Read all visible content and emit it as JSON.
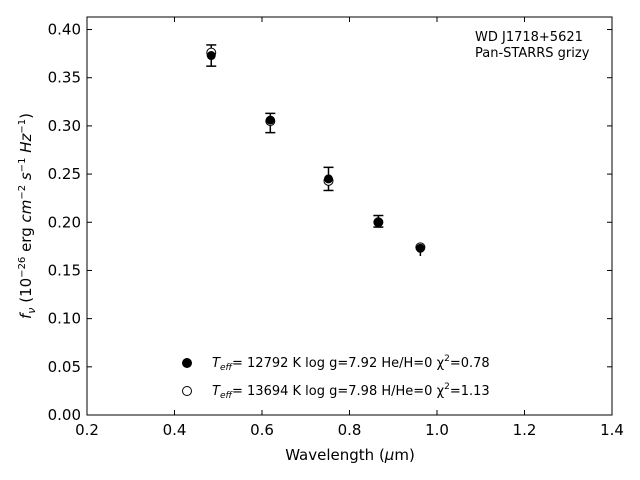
{
  "chart_data": {
    "type": "scatter",
    "title": "",
    "xlabel": "Wavelength (",
    "xlabel_greek": "μ",
    "xlabel_unit": "m)",
    "ylabel": {
      "sym": "f",
      "sub": "ν",
      "p1": " (10",
      "e1": "−26",
      "p2": " erg ",
      "cm": "cm",
      "e2": "−2",
      "s": " s",
      "e3": "−1",
      "hz": " Hz",
      "e4": "−1",
      "close": ")"
    },
    "xlim": [
      0.2,
      1.4
    ],
    "ylim": [
      0.0,
      0.413
    ],
    "xticks": [
      0.2,
      0.4,
      0.6,
      0.8,
      1.0,
      1.2,
      1.4
    ],
    "xtick_labels": [
      "0.2",
      "0.4",
      "0.6",
      "0.8",
      "1.0",
      "1.2",
      "1.4"
    ],
    "yticks": [
      0.0,
      0.05,
      0.1,
      0.15,
      0.2,
      0.25,
      0.3,
      0.35,
      0.4
    ],
    "ytick_labels": [
      "0.00",
      "0.05",
      "0.10",
      "0.15",
      "0.20",
      "0.25",
      "0.30",
      "0.35",
      "0.40"
    ],
    "grid": false,
    "annotation": [
      "WD J1718+5621",
      "Pan-STARRS grizy"
    ],
    "observed": {
      "x": [
        0.484,
        0.619,
        0.752,
        0.866,
        0.962
      ],
      "y": [
        0.373,
        0.303,
        0.245,
        0.201,
        0.17
      ],
      "yerr": [
        0.011,
        0.01,
        0.012,
        0.006,
        0.005
      ],
      "capped": [
        true,
        true,
        true,
        true,
        false
      ]
    },
    "series": [
      {
        "marker": "filled-circle",
        "x": [
          0.484,
          0.619,
          0.752,
          0.866,
          0.962
        ],
        "y": [
          0.373,
          0.306,
          0.245,
          0.2,
          0.173
        ],
        "label": {
          "t": "T",
          "sub": "eff",
          "rest": "= 12792 K  log g=7.92  He/H=0  χ",
          "sup": "2",
          "end": "=0.78"
        }
      },
      {
        "marker": "open-circle",
        "x": [
          0.484,
          0.619,
          0.752,
          0.866,
          0.962
        ],
        "y": [
          0.376,
          0.305,
          0.243,
          0.2,
          0.174
        ],
        "label": {
          "t": "T",
          "sub": "eff",
          "rest": "= 13694 K  log g=7.98  H/He=0  χ",
          "sup": "2",
          "end": "=1.13"
        }
      }
    ],
    "legend_placement": "lower-center",
    "colors": {
      "marker": "#000000",
      "axes": "#000000",
      "background": "#ffffff"
    }
  }
}
